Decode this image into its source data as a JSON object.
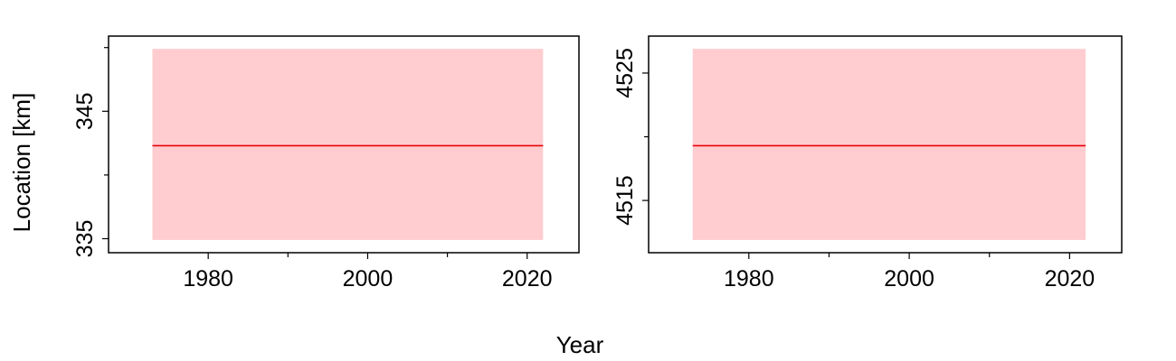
{
  "figure": {
    "shared_xlabel": "Year",
    "shared_ylabel": "Location [km]"
  },
  "colors": {
    "band": "#ffcdcf",
    "line": "#e8000b",
    "frame": "#000000"
  },
  "chart_data": [
    {
      "type": "line",
      "panel": "left",
      "xlabel": "Year",
      "ylabel": "Location [km]",
      "xlim": [
        1967.5,
        2026.5
      ],
      "ylim": [
        333.9,
        350.9
      ],
      "x_ticks": [
        1980,
        2000,
        2020
      ],
      "x_minor_ticks": [
        1990,
        2010
      ],
      "y_ticks": [
        335,
        345
      ],
      "y_minor_ticks": [
        340,
        350
      ],
      "series": [
        {
          "x": [
            1973,
            2022
          ],
          "y": [
            342.3,
            342.3
          ]
        }
      ],
      "bands": [
        {
          "x": [
            1973,
            2022
          ],
          "lower": 334.9,
          "upper": 349.9
        }
      ],
      "grid": false,
      "legend": "none"
    },
    {
      "type": "line",
      "panel": "right",
      "xlabel": "",
      "ylabel": "",
      "xlim": [
        1967.5,
        2026.5
      ],
      "ylim": [
        4510.9,
        4527.9
      ],
      "x_ticks": [
        1980,
        2000,
        2020
      ],
      "x_minor_ticks": [
        1990,
        2010
      ],
      "y_ticks": [
        4515,
        4525
      ],
      "y_minor_ticks": [
        4520
      ],
      "series": [
        {
          "x": [
            1973,
            2022
          ],
          "y": [
            4519.3,
            4519.3
          ]
        }
      ],
      "bands": [
        {
          "x": [
            1973,
            2022
          ],
          "lower": 4511.9,
          "upper": 4526.9
        }
      ],
      "grid": false,
      "legend": "none"
    }
  ]
}
